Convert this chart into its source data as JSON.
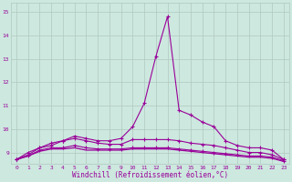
{
  "xlabel": "Windchill (Refroidissement éolien,°C)",
  "background_color": "#cde8df",
  "line_color": "#990099",
  "grid_color": "#b0c8c0",
  "xlim": [
    -0.5,
    23.5
  ],
  "ylim": [
    8.5,
    15.4
  ],
  "yticks": [
    9,
    10,
    11,
    12,
    13,
    14,
    15
  ],
  "xticks": [
    0,
    1,
    2,
    3,
    4,
    5,
    6,
    7,
    8,
    9,
    10,
    11,
    12,
    13,
    14,
    15,
    16,
    17,
    18,
    19,
    20,
    21,
    22,
    23
  ],
  "series": [
    [
      8.7,
      9.0,
      9.2,
      9.4,
      9.5,
      9.7,
      9.6,
      9.5,
      9.5,
      9.6,
      10.1,
      11.1,
      13.1,
      14.8,
      10.8,
      10.6,
      10.3,
      10.1,
      9.5,
      9.3,
      9.2,
      9.2,
      9.1,
      8.7
    ],
    [
      8.7,
      8.9,
      9.2,
      9.3,
      9.5,
      9.6,
      9.5,
      9.4,
      9.35,
      9.35,
      9.55,
      9.55,
      9.55,
      9.55,
      9.5,
      9.4,
      9.35,
      9.3,
      9.2,
      9.1,
      9.0,
      9.0,
      8.9,
      8.7
    ],
    [
      8.7,
      8.85,
      9.1,
      9.2,
      9.2,
      9.3,
      9.2,
      9.15,
      9.15,
      9.15,
      9.2,
      9.2,
      9.2,
      9.2,
      9.15,
      9.1,
      9.05,
      9.0,
      8.95,
      8.9,
      8.85,
      8.85,
      8.8,
      8.65
    ],
    [
      8.7,
      8.85,
      9.05,
      9.15,
      9.15,
      9.2,
      9.1,
      9.1,
      9.1,
      9.1,
      9.15,
      9.15,
      9.15,
      9.15,
      9.1,
      9.05,
      9.0,
      8.95,
      8.9,
      8.85,
      8.8,
      8.8,
      8.75,
      8.62
    ]
  ],
  "series_markers": [
    true,
    true,
    true,
    false
  ]
}
